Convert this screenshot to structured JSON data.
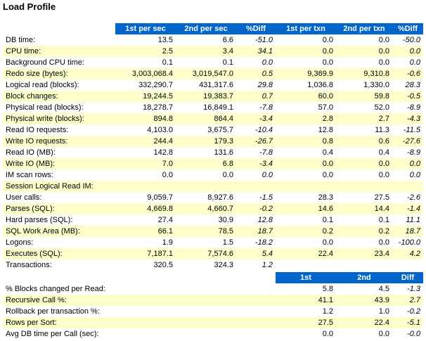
{
  "title": "Load Profile",
  "colors": {
    "header_bg": "#0066cc",
    "header_fg": "#ffffff",
    "stripe": "#ffffcc"
  },
  "load_profile": {
    "headers": [
      "1st per sec",
      "2nd per sec",
      "%Diff",
      "1st per txn",
      "2nd per txn",
      "%Diff"
    ],
    "rows": [
      {
        "label": "DB time:",
        "v": [
          "13.5",
          "6.6",
          "-51.0",
          "0.0",
          "0.0",
          "-50.0"
        ]
      },
      {
        "label": "CPU time:",
        "v": [
          "2.5",
          "3.4",
          "34.1",
          "0.0",
          "0.0",
          "0.0"
        ]
      },
      {
        "label": "Background CPU time:",
        "v": [
          "0.1",
          "0.1",
          "0.0",
          "0.0",
          "0.0",
          "0.0"
        ]
      },
      {
        "label": "Redo size (bytes):",
        "v": [
          "3,003,068.4",
          "3,019,547.0",
          "0.5",
          "9,369.9",
          "9,310.8",
          "-0.6"
        ]
      },
      {
        "label": "Logical read (blocks):",
        "v": [
          "332,290.7",
          "431,317.6",
          "29.8",
          "1,036.8",
          "1,330.0",
          "28.3"
        ]
      },
      {
        "label": "Block changes:",
        "v": [
          "19,244.5",
          "19,383.7",
          "0.7",
          "60.0",
          "59.8",
          "-0.5"
        ]
      },
      {
        "label": "Physical read (blocks):",
        "v": [
          "18,278.7",
          "16,849.1",
          "-7.8",
          "57.0",
          "52.0",
          "-8.9"
        ]
      },
      {
        "label": "Physical write (blocks):",
        "v": [
          "894.8",
          "864.4",
          "-3.4",
          "2.8",
          "2.7",
          "-4.3"
        ]
      },
      {
        "label": "Read IO requests:",
        "v": [
          "4,103.0",
          "3,675.7",
          "-10.4",
          "12.8",
          "11.3",
          "-11.5"
        ]
      },
      {
        "label": "Write IO requests:",
        "v": [
          "244.4",
          "179.3",
          "-26.7",
          "0.8",
          "0.6",
          "-27.6"
        ]
      },
      {
        "label": "Read IO (MB):",
        "v": [
          "142.8",
          "131.6",
          "-7.8",
          "0.4",
          "0.4",
          "-8.9"
        ]
      },
      {
        "label": "Write IO (MB):",
        "v": [
          "7.0",
          "6.8",
          "-3.4",
          "0.0",
          "0.0",
          "0.0"
        ]
      },
      {
        "label": "IM scan rows:",
        "v": [
          "0.0",
          "0.0",
          "0.0",
          "0.0",
          "0.0",
          "0.0"
        ]
      },
      {
        "label": "Session Logical Read IM:",
        "v": [
          "",
          "",
          "",
          "",
          "",
          ""
        ]
      },
      {
        "label": "User calls:",
        "v": [
          "9,059.7",
          "8,927.6",
          "-1.5",
          "28.3",
          "27.5",
          "-2.6"
        ]
      },
      {
        "label": "Parses (SQL):",
        "v": [
          "4,669.8",
          "4,660.7",
          "-0.2",
          "14.6",
          "14.4",
          "-1.4"
        ]
      },
      {
        "label": "Hard parses (SQL):",
        "v": [
          "27.4",
          "30.9",
          "12.8",
          "0.1",
          "0.1",
          "11.1"
        ]
      },
      {
        "label": "SQL Work Area (MB):",
        "v": [
          "66.1",
          "78.5",
          "18.7",
          "0.2",
          "0.2",
          "18.7"
        ]
      },
      {
        "label": "Logons:",
        "v": [
          "1.9",
          "1.5",
          "-18.2",
          "0.0",
          "0.0",
          "-100.0"
        ]
      },
      {
        "label": "Executes (SQL):",
        "v": [
          "7,187.1",
          "7,574.6",
          "5.4",
          "22.4",
          "23.4",
          "4.2"
        ]
      },
      {
        "label": "Transactions:",
        "v": [
          "320.5",
          "324.3",
          "1.2",
          "",
          "",
          ""
        ]
      }
    ]
  },
  "ratios": {
    "headers": [
      "1st",
      "2nd",
      "Diff"
    ],
    "rows": [
      {
        "label": "% Blocks changed per Read:",
        "v": [
          "5.8",
          "4.5",
          "-1.3"
        ]
      },
      {
        "label": "Recursive Call %:",
        "v": [
          "41.1",
          "43.9",
          "2.7"
        ]
      },
      {
        "label": "Rollback per transaction %:",
        "v": [
          "1.2",
          "1.0",
          "-0.2"
        ]
      },
      {
        "label": "Rows per Sort:",
        "v": [
          "27.5",
          "22.4",
          "-5.1"
        ]
      },
      {
        "label": "Avg DB time per Call (sec):",
        "v": [
          "0.0",
          "0.0",
          "-0.0"
        ]
      }
    ]
  }
}
